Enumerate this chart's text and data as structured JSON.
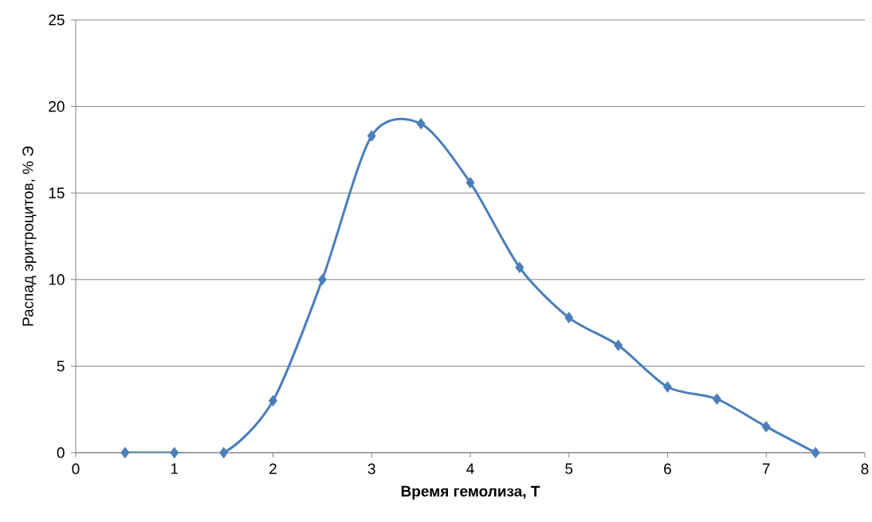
{
  "chart_data": {
    "type": "line",
    "xlabel": "Время гемолиза, Т",
    "ylabel": "Распад эритроцитов, % Э",
    "x": [
      0.5,
      1,
      1.5,
      2,
      2.5,
      3,
      3.5,
      4,
      4.5,
      5,
      5.5,
      6,
      6.5,
      7,
      7.5
    ],
    "series": [
      {
        "color": "#4a7ebb",
        "values": [
          0,
          0,
          0,
          3.0,
          10.0,
          18.3,
          19.0,
          15.6,
          10.7,
          7.8,
          6.2,
          3.8,
          3.1,
          1.5,
          0
        ]
      }
    ],
    "xlim": [
      0,
      8
    ],
    "ylim": [
      0,
      25
    ],
    "xticks": [
      0,
      1,
      2,
      3,
      4,
      5,
      6,
      7,
      8
    ],
    "yticks": [
      0,
      5,
      10,
      15,
      20,
      25
    ],
    "grid": "y",
    "marker": "diamond",
    "line_style": "solid"
  }
}
